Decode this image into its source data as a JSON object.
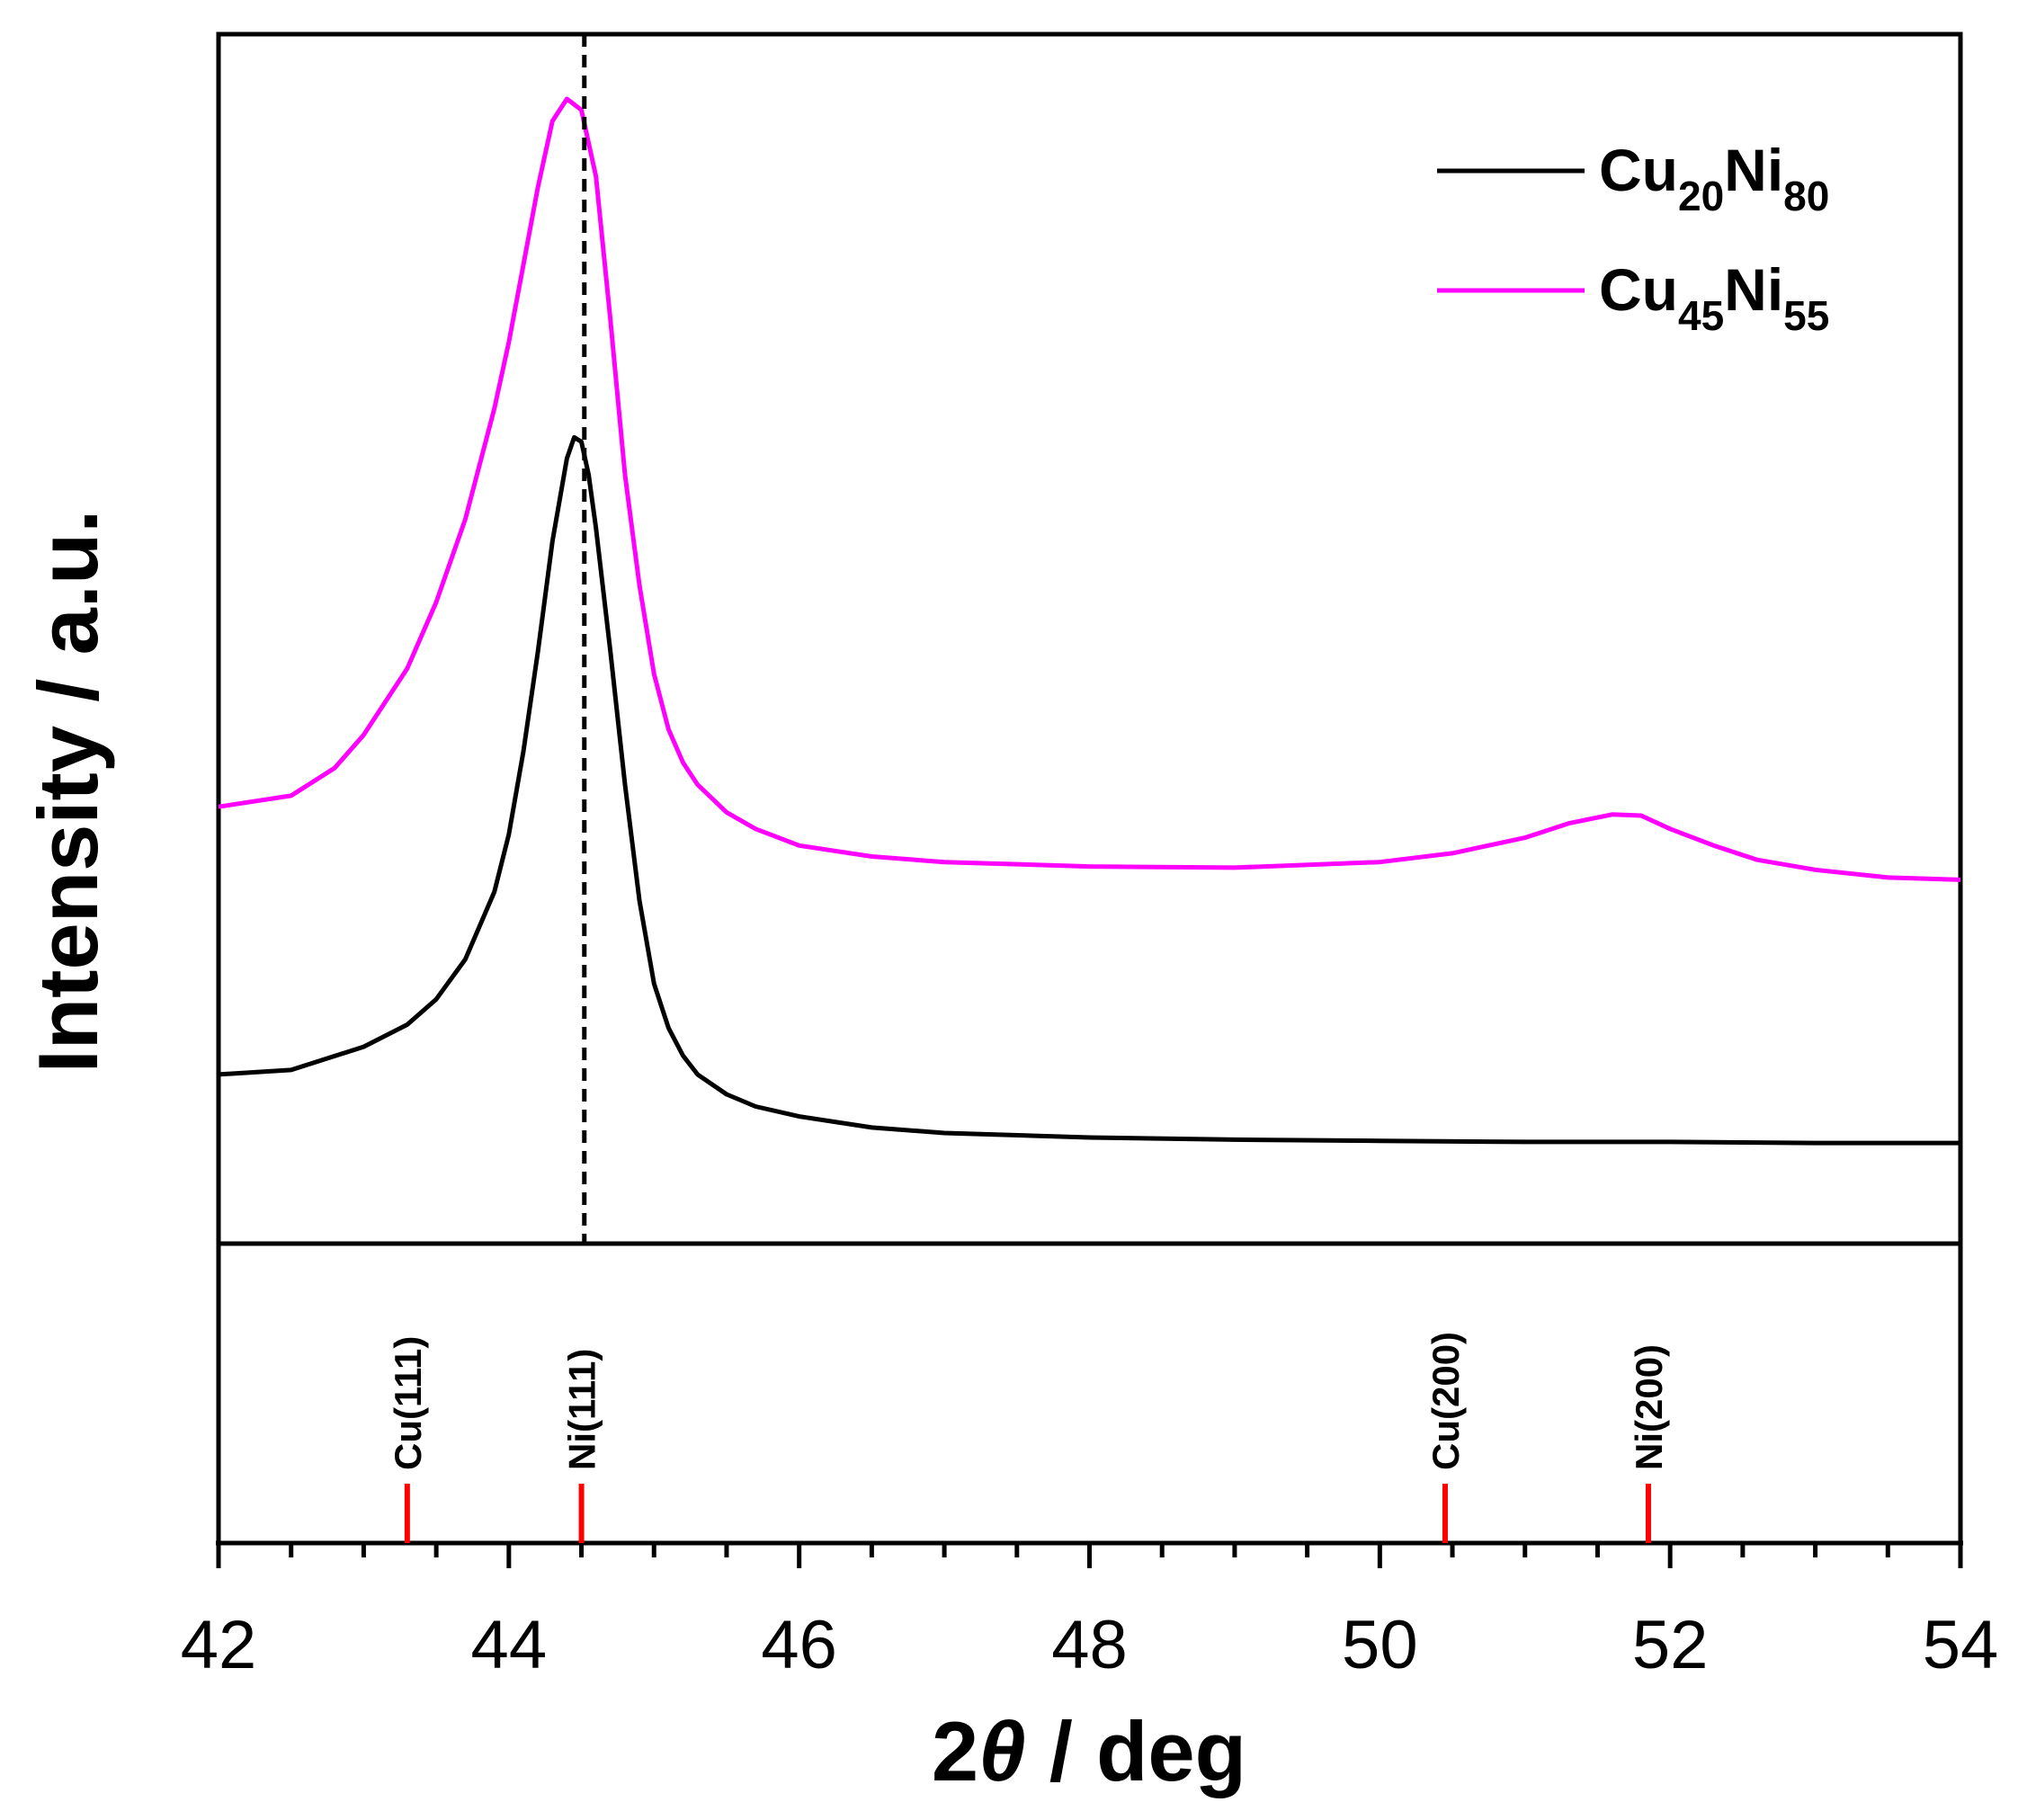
{
  "chart_data": {
    "type": "line",
    "xlabel_prefix": "2",
    "xlabel_symbol": "θ",
    "xlabel_suffix": " / deg",
    "ylabel": "Intensity / a.u.",
    "xlim": [
      42,
      54
    ],
    "ylim": [
      0,
      1.0
    ],
    "xticks": [
      "42",
      "44",
      "46",
      "48",
      "50",
      "52",
      "54"
    ],
    "xticks_values": [
      42,
      44,
      46,
      48,
      50,
      52,
      54
    ],
    "minor_xtick_step": 0.5,
    "yticks_shown": false,
    "grid": false,
    "legend_position": "top-right",
    "series": [
      {
        "name": "Cu20Ni80",
        "legend_parts": [
          {
            "text": "Cu",
            "sub": false
          },
          {
            "text": "20",
            "sub": true
          },
          {
            "text": "Ni",
            "sub": false
          },
          {
            "text": "80",
            "sub": true
          }
        ],
        "color": "#000000",
        "x": [
          42.0,
          42.5,
          43.0,
          43.3,
          43.5,
          43.7,
          43.9,
          44.0,
          44.1,
          44.2,
          44.3,
          44.4,
          44.45,
          44.5,
          44.55,
          44.6,
          44.7,
          44.8,
          44.9,
          45.0,
          45.1,
          45.2,
          45.3,
          45.5,
          45.7,
          46.0,
          46.5,
          47.0,
          48.0,
          49.0,
          50.0,
          51.0,
          52.0,
          53.0,
          54.0
        ],
        "y": [
          0.118,
          0.122,
          0.143,
          0.163,
          0.186,
          0.222,
          0.283,
          0.335,
          0.41,
          0.5,
          0.6,
          0.675,
          0.694,
          0.69,
          0.66,
          0.612,
          0.5,
          0.38,
          0.275,
          0.2,
          0.16,
          0.135,
          0.118,
          0.1,
          0.089,
          0.08,
          0.07,
          0.065,
          0.061,
          0.059,
          0.058,
          0.057,
          0.057,
          0.056,
          0.056
        ]
      },
      {
        "name": "Cu45Ni55",
        "legend_parts": [
          {
            "text": "Cu",
            "sub": false
          },
          {
            "text": "45",
            "sub": true
          },
          {
            "text": "Ni",
            "sub": false
          },
          {
            "text": "55",
            "sub": true
          }
        ],
        "color": "#ff00ff",
        "x": [
          42.0,
          42.5,
          42.8,
          43.0,
          43.3,
          43.5,
          43.7,
          43.9,
          44.0,
          44.1,
          44.2,
          44.3,
          44.4,
          44.5,
          44.6,
          44.7,
          44.8,
          44.9,
          45.0,
          45.1,
          45.2,
          45.3,
          45.5,
          45.7,
          46.0,
          46.5,
          47.0,
          48.0,
          49.0,
          50.0,
          50.5,
          51.0,
          51.3,
          51.6,
          51.8,
          52.0,
          52.3,
          52.6,
          53.0,
          53.5,
          54.0
        ],
        "y": [
          0.36,
          0.37,
          0.395,
          0.425,
          0.485,
          0.545,
          0.62,
          0.72,
          0.78,
          0.85,
          0.92,
          0.98,
          1.0,
          0.99,
          0.93,
          0.8,
          0.66,
          0.56,
          0.48,
          0.43,
          0.4,
          0.38,
          0.355,
          0.34,
          0.325,
          0.315,
          0.31,
          0.306,
          0.305,
          0.31,
          0.318,
          0.332,
          0.345,
          0.353,
          0.352,
          0.34,
          0.325,
          0.312,
          0.303,
          0.296,
          0.294
        ]
      }
    ],
    "reference_line_x": 44.52,
    "reference_peaks": [
      {
        "label": "Cu(111)",
        "x": 43.3
      },
      {
        "label": "Ni(111)",
        "x": 44.5
      },
      {
        "label": "Cu(200)",
        "x": 50.45
      },
      {
        "label": "Ni(200)",
        "x": 51.85
      }
    ],
    "reference_color": "#ff0000"
  }
}
